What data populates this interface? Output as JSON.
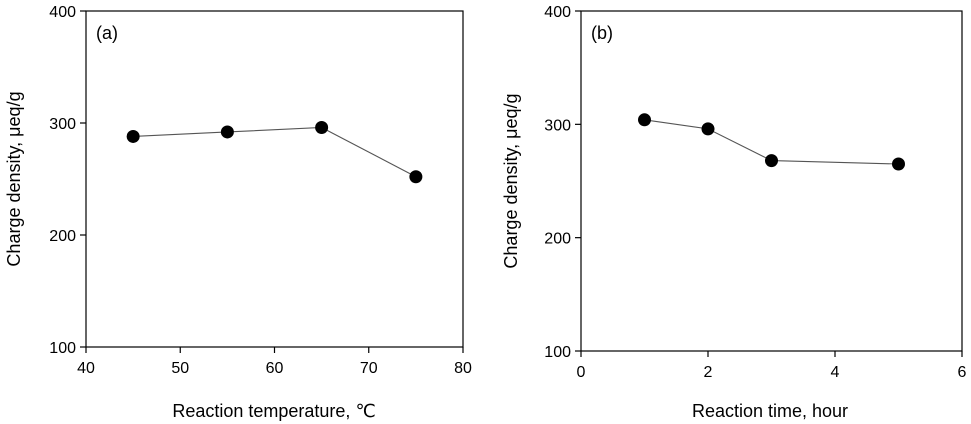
{
  "chart_data": [
    {
      "type": "line",
      "panel_label": "(a)",
      "xlabel": "Reaction temperature, ℃",
      "ylabel": "Charge density, μeq/g",
      "xlim": [
        40,
        80
      ],
      "ylim": [
        100,
        400
      ],
      "xticks": [
        40,
        50,
        60,
        70,
        80
      ],
      "yticks": [
        100,
        200,
        300,
        400
      ],
      "xtick_labels": [
        "40",
        "50",
        "60",
        "70",
        "80"
      ],
      "ytick_labels": [
        "100",
        "200",
        "300",
        "400"
      ],
      "series": [
        {
          "name": "Charge density",
          "x": [
            45,
            55,
            65,
            75
          ],
          "y": [
            288,
            292,
            296,
            252
          ]
        }
      ]
    },
    {
      "type": "line",
      "panel_label": "(b)",
      "xlabel": "Reaction time, hour",
      "ylabel": "Charge density, μeq/g",
      "xlim": [
        0,
        6
      ],
      "ylim": [
        100,
        400
      ],
      "xticks": [
        0,
        2,
        4,
        6
      ],
      "yticks": [
        100,
        200,
        300,
        400
      ],
      "xtick_labels": [
        "0",
        "2",
        "4",
        "6"
      ],
      "ytick_labels": [
        "100",
        "200",
        "300",
        "400"
      ],
      "series": [
        {
          "name": "Charge density",
          "x": [
            1,
            2,
            3,
            5
          ],
          "y": [
            304,
            296,
            268,
            265
          ]
        }
      ]
    }
  ],
  "style": {
    "marker_color": "#000000",
    "line_color": "#555555",
    "axis_color": "#000000"
  }
}
